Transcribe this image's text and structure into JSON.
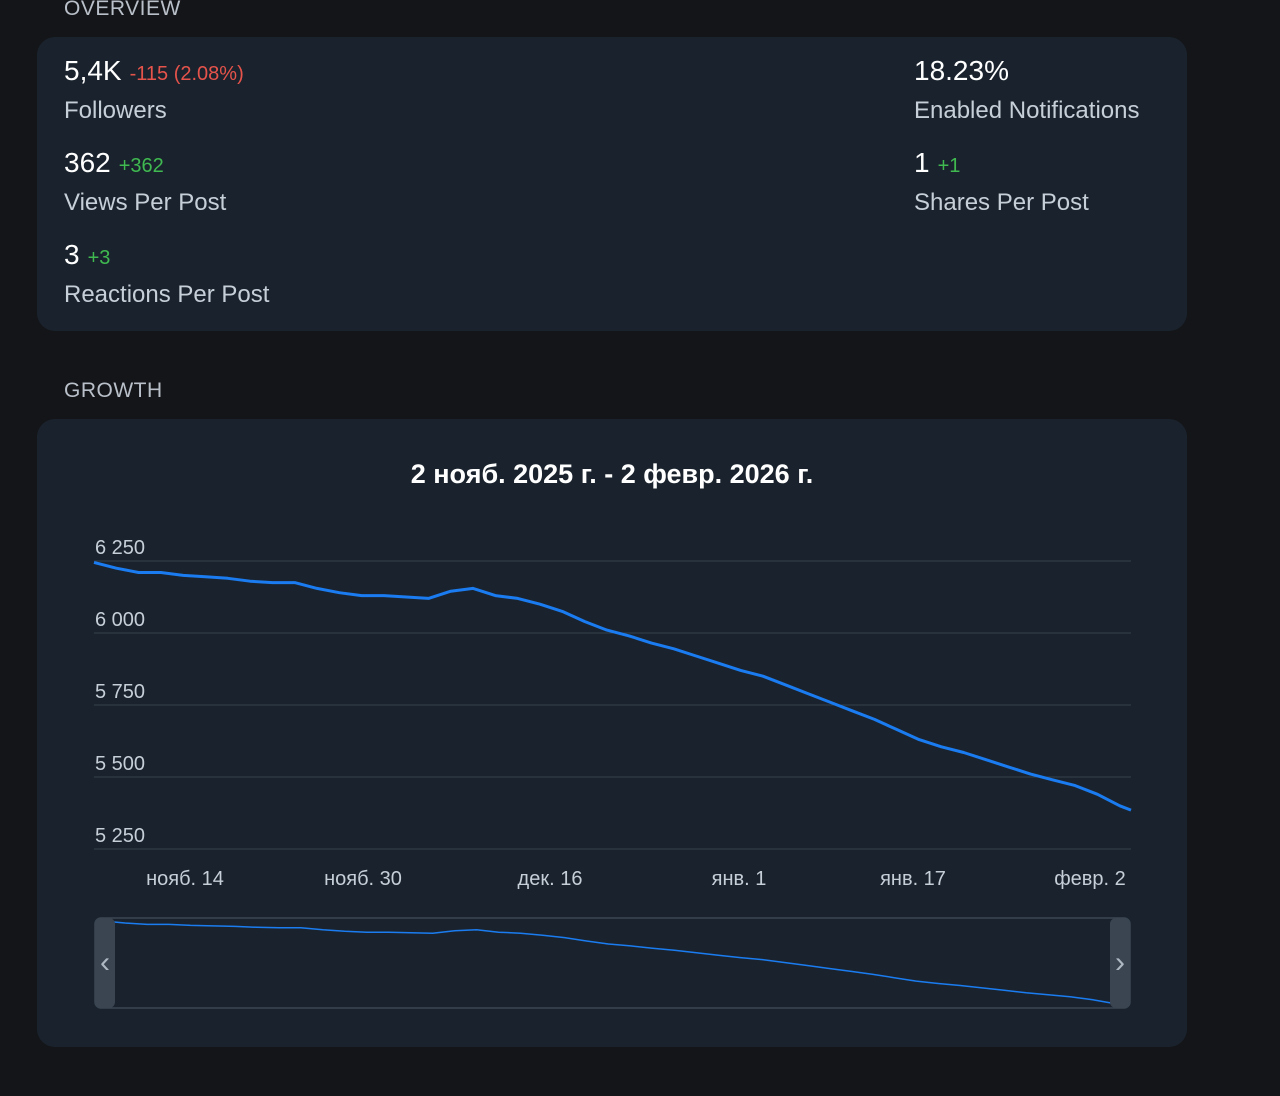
{
  "overview": {
    "section_title": "OVERVIEW",
    "followers": {
      "value": "5,4K",
      "delta": "-115 (2.08%)",
      "label": "Followers"
    },
    "views_per_post": {
      "value": "362",
      "delta": "+362",
      "label": "Views Per Post"
    },
    "reactions_per_post": {
      "value": "3",
      "delta": "+3",
      "label": "Reactions Per Post"
    },
    "enabled_notifications": {
      "value": "18.23%",
      "label": "Enabled Notifications"
    },
    "shares_per_post": {
      "value": "1",
      "delta": "+1",
      "label": "Shares Per Post"
    }
  },
  "growth": {
    "section_title": "GROWTH",
    "range_title": "2 нояб. 2025 г. - 2 февр. 2026 г.",
    "navigator": {
      "left_handle": "‹",
      "right_handle": "›"
    }
  },
  "colors": {
    "line": "#1a7cf0",
    "negative": "#e5534b",
    "positive": "#3fb950"
  },
  "chart_data": {
    "type": "line",
    "title": "2 нояб. 2025 г. - 2 февр. 2026 г.",
    "xlabel": "",
    "ylabel": "",
    "x_tick_labels": [
      "нояб. 14",
      "нояб. 30",
      "дек. 16",
      "янв. 1",
      "янв. 17",
      "февр. 2"
    ],
    "y_tick_labels": [
      "6 250",
      "6 000",
      "5 750",
      "5 500",
      "5 250"
    ],
    "y_ticks": [
      6250,
      6000,
      5750,
      5500,
      5250
    ],
    "ylim": [
      5250,
      6250
    ],
    "x_range": [
      "2025-11-02",
      "2026-02-03"
    ],
    "grid": true,
    "series": [
      {
        "x": [
          "2025-11-02",
          "2025-11-04",
          "2025-11-06",
          "2025-11-08",
          "2025-11-10",
          "2025-11-12",
          "2025-11-14",
          "2025-11-16",
          "2025-11-18",
          "2025-11-20",
          "2025-11-22",
          "2025-11-24",
          "2025-11-26",
          "2025-11-28",
          "2025-11-30",
          "2025-12-02",
          "2025-12-04",
          "2025-12-06",
          "2025-12-08",
          "2025-12-10",
          "2025-12-12",
          "2025-12-14",
          "2025-12-16",
          "2025-12-18",
          "2025-12-20",
          "2025-12-22",
          "2025-12-24",
          "2025-12-26",
          "2025-12-28",
          "2025-12-30",
          "2026-01-01",
          "2026-01-03",
          "2026-01-05",
          "2026-01-07",
          "2026-01-09",
          "2026-01-11",
          "2026-01-13",
          "2026-01-15",
          "2026-01-17",
          "2026-01-19",
          "2026-01-21",
          "2026-01-23",
          "2026-01-25",
          "2026-01-27",
          "2026-01-29",
          "2026-01-31",
          "2026-02-02",
          "2026-02-03"
        ],
        "values": [
          6245,
          6225,
          6210,
          6210,
          6200,
          6195,
          6190,
          6180,
          6175,
          6175,
          6155,
          6140,
          6130,
          6130,
          6125,
          6120,
          6145,
          6155,
          6130,
          6120,
          6100,
          6075,
          6040,
          6010,
          5990,
          5965,
          5945,
          5920,
          5895,
          5870,
          5850,
          5820,
          5790,
          5760,
          5730,
          5700,
          5665,
          5630,
          5605,
          5585,
          5560,
          5535,
          5510,
          5490,
          5470,
          5440,
          5400,
          5385
        ]
      }
    ]
  }
}
